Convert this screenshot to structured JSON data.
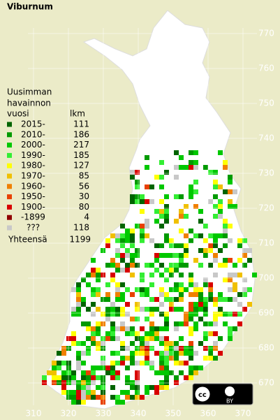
{
  "title": "Viburnum",
  "legend": {
    "heading": [
      "Uusimman",
      "havainnon"
    ],
    "col_headers": [
      "vuosi",
      "lkm"
    ],
    "items": [
      {
        "label": "2015-",
        "count": 111,
        "color": "#006400"
      },
      {
        "label": "2010-",
        "count": 186,
        "color": "#009a00"
      },
      {
        "label": "2000-",
        "count": 217,
        "color": "#00c800"
      },
      {
        "label": "1990-",
        "count": 185,
        "color": "#33ee33"
      },
      {
        "label": "1980-",
        "count": 127,
        "color": "#ffff00"
      },
      {
        "label": "1970-",
        "count": 85,
        "color": "#f0c000"
      },
      {
        "label": "1960-",
        "count": 56,
        "color": "#f08000"
      },
      {
        "label": "1950-",
        "count": 30,
        "color": "#e84000"
      },
      {
        "label": "1900-",
        "count": 80,
        "color": "#d80000"
      },
      {
        "label": "-1899",
        "count": 4,
        "color": "#900000"
      },
      {
        "label": "???",
        "count": 118,
        "color": "#c8c8c8"
      }
    ],
    "total": {
      "label": "Yhteensä",
      "count": 1199
    }
  },
  "grid": {
    "northing": [
      670,
      680,
      690,
      700,
      710,
      720,
      730,
      740,
      750,
      760,
      770
    ],
    "easting": [
      310,
      320,
      330,
      340,
      350,
      360,
      370
    ]
  },
  "license": "BY"
}
